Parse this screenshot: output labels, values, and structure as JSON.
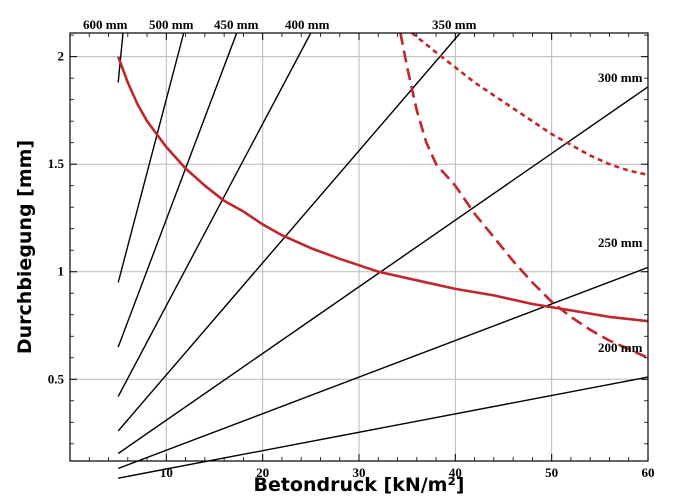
{
  "chart_data": {
    "type": "line",
    "title": "",
    "xlabel": "Betondruck [kN/m²]",
    "ylabel": "Durchbiegung [mm]",
    "xlim": [
      0,
      60
    ],
    "ylim": [
      0.12,
      2.11
    ],
    "x_ticks": [
      10,
      20,
      30,
      40,
      50,
      60
    ],
    "y_ticks": [
      0.5,
      1,
      1.5,
      2
    ],
    "y_tick_labels": [
      "0.5",
      "1",
      "1.5",
      "2"
    ],
    "grid": true,
    "legend": "none",
    "series": [
      {
        "name": "200 mm",
        "color": "#000000",
        "style": "solid",
        "x": [
          5,
          60
        ],
        "y": [
          0.04,
          0.51
        ]
      },
      {
        "name": "250 mm",
        "color": "#000000",
        "style": "solid",
        "x": [
          5,
          60
        ],
        "y": [
          0.085,
          1.02
        ]
      },
      {
        "name": "300 mm",
        "color": "#000000",
        "style": "solid",
        "x": [
          5,
          60
        ],
        "y": [
          0.155,
          1.86
        ]
      },
      {
        "name": "350 mm",
        "color": "#000000",
        "style": "solid",
        "x": [
          5,
          40.5
        ],
        "y": [
          0.26,
          2.11
        ]
      },
      {
        "name": "400 mm",
        "color": "#000000",
        "style": "solid",
        "x": [
          5,
          25
        ],
        "y": [
          0.42,
          2.11
        ]
      },
      {
        "name": "450 mm",
        "color": "#000000",
        "style": "solid",
        "x": [
          5,
          17.3
        ],
        "y": [
          0.65,
          2.11
        ]
      },
      {
        "name": "500 mm",
        "color": "#000000",
        "style": "solid",
        "x": [
          5,
          11.8
        ],
        "y": [
          0.95,
          2.11
        ]
      },
      {
        "name": "600 mm",
        "color": "#000000",
        "style": "solid",
        "x": [
          5,
          5.5
        ],
        "y": [
          1.88,
          2.11
        ]
      },
      {
        "name": "",
        "color": "#c0262c",
        "style": "solid",
        "x": [
          5,
          6,
          7,
          8,
          9,
          10,
          12,
          14,
          16,
          18,
          20,
          22,
          25,
          28,
          32,
          36,
          40,
          44,
          48,
          52,
          56,
          60
        ],
        "y": [
          2.0,
          1.88,
          1.78,
          1.7,
          1.64,
          1.58,
          1.48,
          1.4,
          1.33,
          1.28,
          1.22,
          1.17,
          1.11,
          1.06,
          1.0,
          0.96,
          0.92,
          0.89,
          0.85,
          0.82,
          0.79,
          0.77
        ]
      },
      {
        "name": "",
        "color": "#c0262c",
        "style": "dashed",
        "x": [
          34.3,
          35,
          36,
          37,
          38,
          40,
          42,
          44,
          46,
          48,
          50,
          52,
          54,
          56,
          58,
          60
        ],
        "y": [
          2.11,
          1.95,
          1.75,
          1.6,
          1.5,
          1.4,
          1.27,
          1.16,
          1.05,
          0.95,
          0.86,
          0.79,
          0.73,
          0.68,
          0.64,
          0.6
        ]
      },
      {
        "name": "",
        "color": "#c0262c",
        "style": "dotted",
        "x": [
          35.5,
          38,
          40,
          42,
          44,
          46,
          48,
          50,
          52,
          54,
          56,
          58,
          60
        ],
        "y": [
          2.11,
          2.02,
          1.95,
          1.88,
          1.82,
          1.76,
          1.7,
          1.64,
          1.59,
          1.54,
          1.5,
          1.47,
          1.45
        ]
      }
    ],
    "line_labels": [
      {
        "text": "200 mm",
        "series": "200 mm"
      },
      {
        "text": "250 mm",
        "series": "250 mm"
      },
      {
        "text": "300 mm",
        "series": "300 mm"
      },
      {
        "text": "350 mm",
        "series": "350 mm"
      },
      {
        "text": "400 mm",
        "series": "400 mm"
      },
      {
        "text": "450 mm",
        "series": "450 mm"
      },
      {
        "text": "500 mm",
        "series": "500 mm"
      },
      {
        "text": "600 mm",
        "series": "600 mm"
      }
    ]
  }
}
